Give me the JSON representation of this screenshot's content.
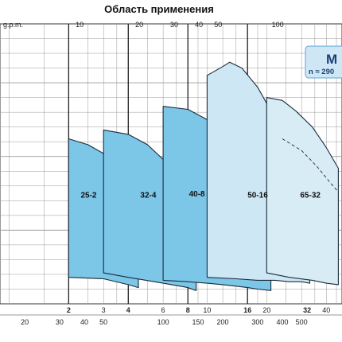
{
  "chart_data": {
    "type": "area",
    "title": "Область применения",
    "badge": {
      "model": "M",
      "speed": "n ≈ 290"
    },
    "top_axis": {
      "unit": "g.p.m.",
      "range": [
        0,
        120
      ],
      "ticks": [
        {
          "value": 0,
          "label": "g.p.m."
        },
        {
          "value": 10,
          "label": "10"
        },
        {
          "value": 20,
          "label": "20"
        },
        {
          "value": 30,
          "label": "30"
        },
        {
          "value": 40,
          "label": "40"
        },
        {
          "value": 50,
          "label": "50"
        },
        {
          "value": 100,
          "label": "100"
        }
      ]
    },
    "bottom_axis_1": {
      "ticks": [
        {
          "value": 2,
          "label": "2",
          "bold": true
        },
        {
          "value": 3,
          "label": "3",
          "bold": false
        },
        {
          "value": 4,
          "label": "4",
          "bold": true
        },
        {
          "value": 6,
          "label": "6",
          "bold": false
        },
        {
          "value": 8,
          "label": "8",
          "bold": true
        },
        {
          "value": 10,
          "label": "10",
          "bold": false
        },
        {
          "value": 16,
          "label": "16",
          "bold": true
        },
        {
          "value": 20,
          "label": "20",
          "bold": false
        },
        {
          "value": 32,
          "label": "32",
          "bold": true
        },
        {
          "value": 40,
          "label": "40",
          "bold": false
        }
      ]
    },
    "bottom_axis_2": {
      "ticks": [
        {
          "value": 20,
          "label": "20"
        },
        {
          "value": 30,
          "label": "30"
        },
        {
          "value": 40,
          "label": "40"
        },
        {
          "value": 50,
          "label": "50"
        },
        {
          "value": 100,
          "label": "100"
        },
        {
          "value": 150,
          "label": "150"
        },
        {
          "value": 200,
          "label": "200"
        },
        {
          "value": 300,
          "label": "300"
        },
        {
          "value": 400,
          "label": "400"
        },
        {
          "value": 500,
          "label": "500"
        }
      ]
    },
    "series": [
      {
        "name": "25-2",
        "color": "#7cc6e8",
        "top": [
          [
            2,
            112
          ],
          [
            2.5,
            108
          ],
          [
            3,
            102
          ],
          [
            3.5,
            94
          ],
          [
            4,
            84
          ],
          [
            4.4,
            72
          ],
          [
            4.5,
            70
          ]
        ],
        "bottom": [
          [
            2,
            18
          ],
          [
            3,
            17
          ],
          [
            4,
            13
          ],
          [
            4.5,
            11
          ]
        ],
        "label_at": [
          2.3,
          72
        ]
      },
      {
        "name": "32-4",
        "color": "#7cc6e8",
        "top": [
          [
            3,
            118
          ],
          [
            4,
            115
          ],
          [
            5,
            108
          ],
          [
            6,
            98
          ],
          [
            7,
            86
          ],
          [
            8,
            74
          ],
          [
            8.8,
            64
          ]
        ],
        "bottom": [
          [
            3,
            21
          ],
          [
            4,
            18
          ],
          [
            6,
            14
          ],
          [
            8,
            11
          ],
          [
            8.8,
            9
          ]
        ],
        "label_at": [
          4.6,
          72
        ]
      },
      {
        "name": "40-8",
        "color": "#7cc6e8",
        "top": [
          [
            6,
            134
          ],
          [
            8,
            132
          ],
          [
            10,
            125
          ],
          [
            12,
            116
          ],
          [
            14,
            105
          ],
          [
            16,
            92
          ],
          [
            18,
            79
          ],
          [
            20,
            68
          ],
          [
            21,
            62
          ]
        ],
        "bottom": [
          [
            6,
            16
          ],
          [
            8,
            15
          ],
          [
            10,
            14
          ],
          [
            12,
            13
          ],
          [
            14,
            12
          ],
          [
            16,
            11
          ],
          [
            18,
            10
          ],
          [
            21,
            9
          ]
        ],
        "label_at": [
          8.1,
          73
        ]
      },
      {
        "name": "50-16",
        "color": "#cde8f4",
        "top": [
          [
            10,
            155
          ],
          [
            12,
            161
          ],
          [
            13,
            164
          ],
          [
            15,
            160
          ],
          [
            18,
            147
          ],
          [
            21,
            131
          ],
          [
            24,
            115
          ],
          [
            26,
            103
          ],
          [
            28,
            94
          ],
          [
            30,
            86
          ],
          [
            32,
            80
          ],
          [
            33,
            76
          ]
        ],
        "bottom": [
          [
            10,
            18
          ],
          [
            14,
            17
          ],
          [
            18,
            16
          ],
          [
            22,
            16
          ],
          [
            26,
            15
          ],
          [
            30,
            15
          ],
          [
            33,
            14
          ]
        ],
        "label_at": [
          16,
          72
        ]
      },
      {
        "name": "65-32",
        "color": "#d8ecf5",
        "top": [
          [
            20,
            140
          ],
          [
            24,
            138
          ],
          [
            28,
            131
          ],
          [
            34,
            120
          ],
          [
            40,
            106
          ],
          [
            46,
            92
          ]
        ],
        "bottom": [
          [
            20,
            21
          ],
          [
            26,
            18
          ],
          [
            34,
            16
          ],
          [
            40,
            14
          ],
          [
            46,
            13
          ]
        ],
        "label_at": [
          29.5,
          72
        ]
      }
    ]
  }
}
